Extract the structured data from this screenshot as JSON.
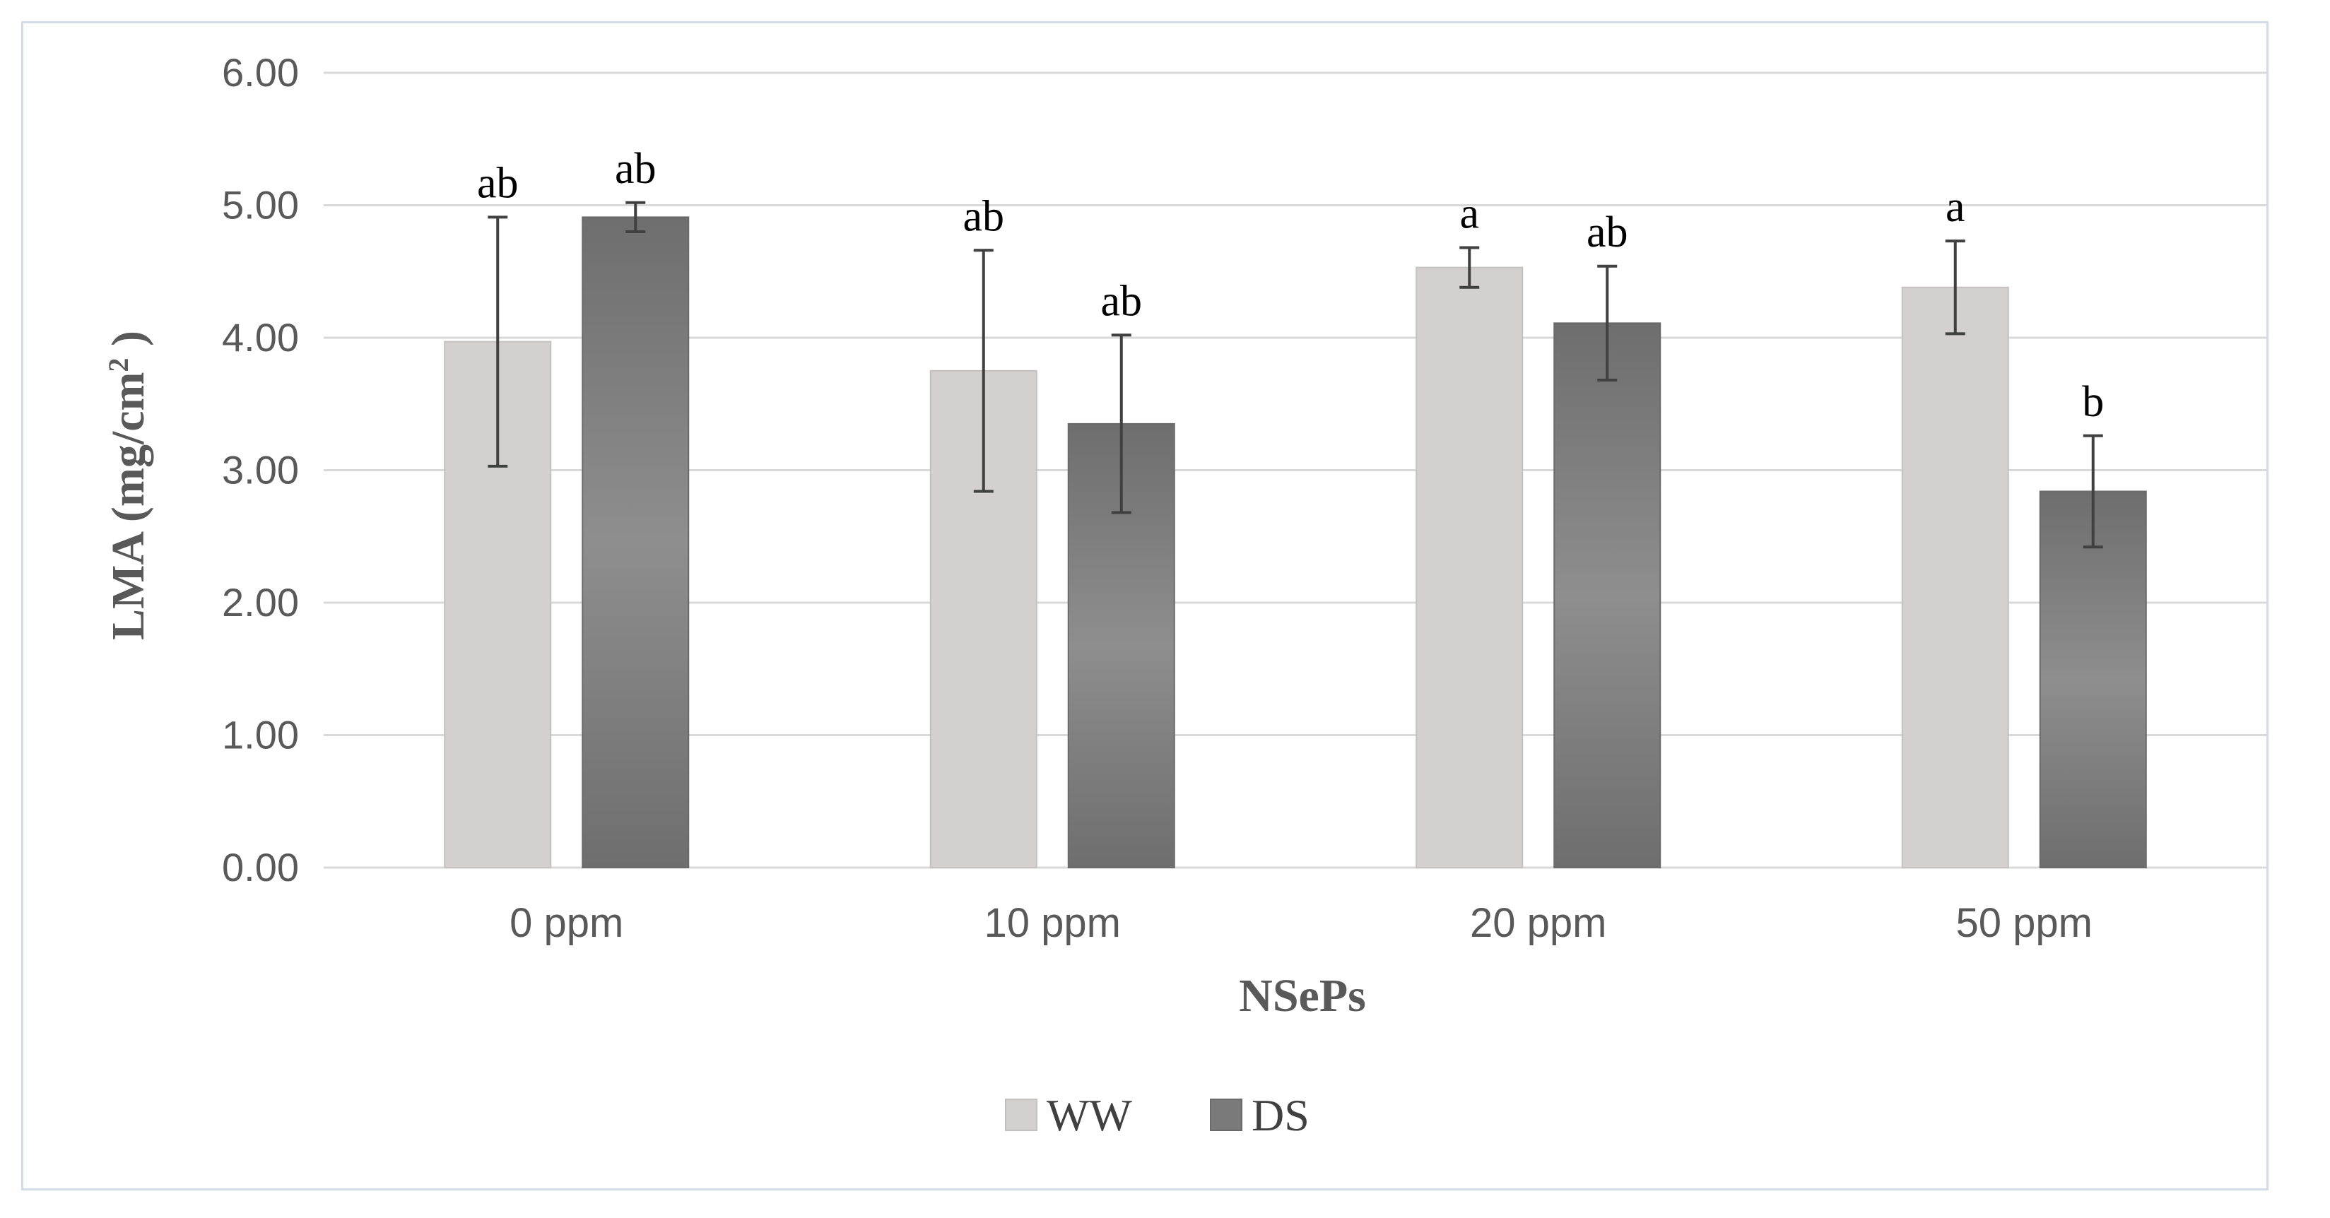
{
  "chart_data": {
    "type": "bar",
    "title": "",
    "xlabel": "NSePs",
    "ylabel": "LMA (mg/cm",
    "ylabel_superscript": "2",
    "ylabel_suffix": " )",
    "categories": [
      "0 ppm",
      "10 ppm",
      "20 ppm",
      "50 ppm"
    ],
    "ylim": [
      0,
      6
    ],
    "yticks": [
      "0.00",
      "1.00",
      "2.00",
      "3.00",
      "4.00",
      "5.00",
      "6.00"
    ],
    "grid": true,
    "legend_position": "bottom",
    "series": [
      {
        "name": "WW",
        "color": "#d4d0d0",
        "values": [
          3.97,
          3.75,
          4.53,
          4.38
        ],
        "errors": [
          0.94,
          0.91,
          0.15,
          0.35
        ],
        "labels": [
          "ab",
          "ab",
          "a",
          "a"
        ]
      },
      {
        "name": "DS",
        "color": "#7a7a7a",
        "values": [
          4.91,
          3.35,
          4.11,
          2.84
        ],
        "errors": [
          0.11,
          0.67,
          0.43,
          0.42
        ],
        "labels": [
          "ab",
          "ab",
          "ab",
          "b"
        ]
      }
    ]
  }
}
